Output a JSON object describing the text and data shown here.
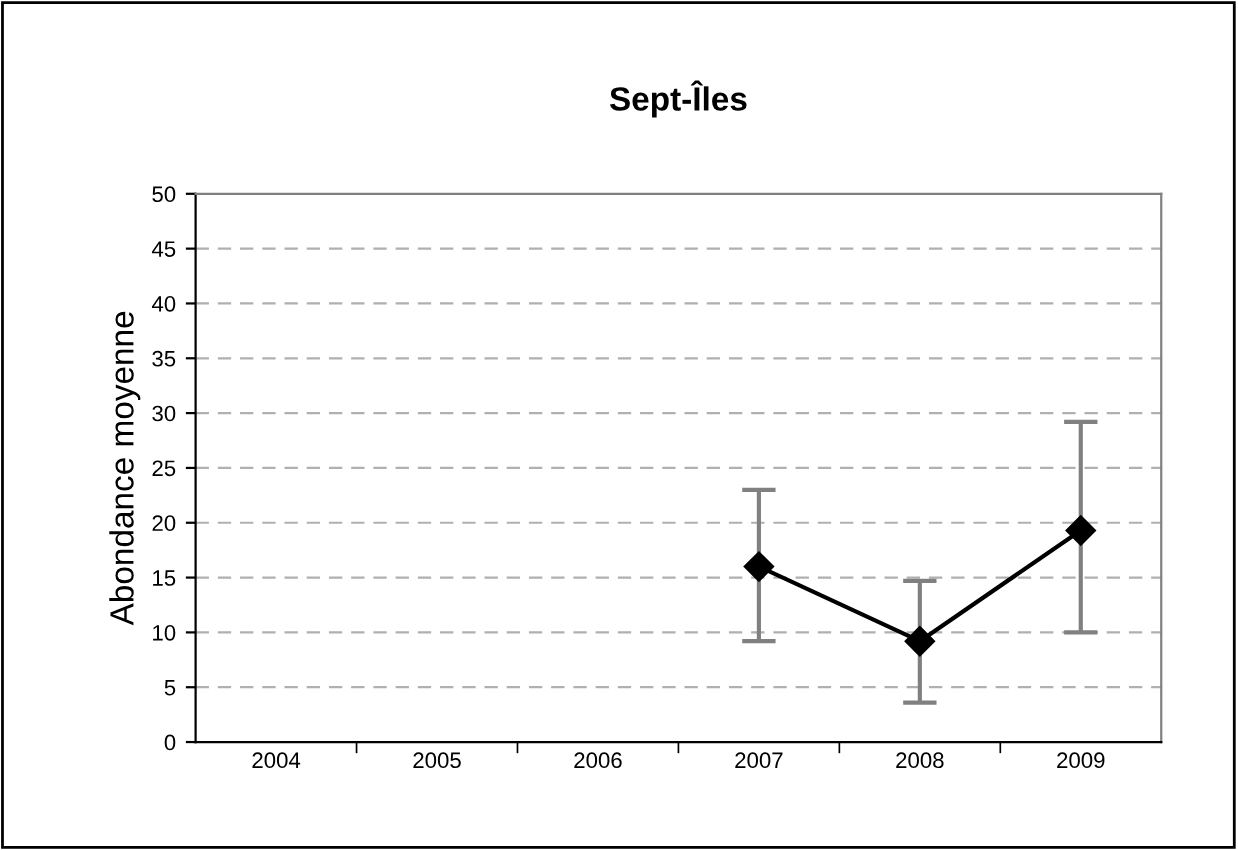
{
  "chart_data": {
    "type": "line",
    "title": "Sept-Îles",
    "ylabel": "Abondance moyenne",
    "categories": [
      "2004",
      "2005",
      "2006",
      "2007",
      "2008",
      "2009"
    ],
    "series": [
      {
        "color": "#000000",
        "values": [
          null,
          null,
          null,
          16,
          9.2,
          19.3
        ],
        "errors": [
          null,
          null,
          null,
          [
            9.2,
            23
          ],
          [
            3.6,
            14.7
          ],
          [
            10,
            29.2
          ]
        ]
      }
    ],
    "ylim": [
      0,
      50
    ],
    "yticks": [
      0,
      5,
      10,
      15,
      20,
      25,
      30,
      35,
      40,
      45,
      50
    ],
    "grid": "y",
    "marker": "diamond",
    "line_style": "solid"
  }
}
